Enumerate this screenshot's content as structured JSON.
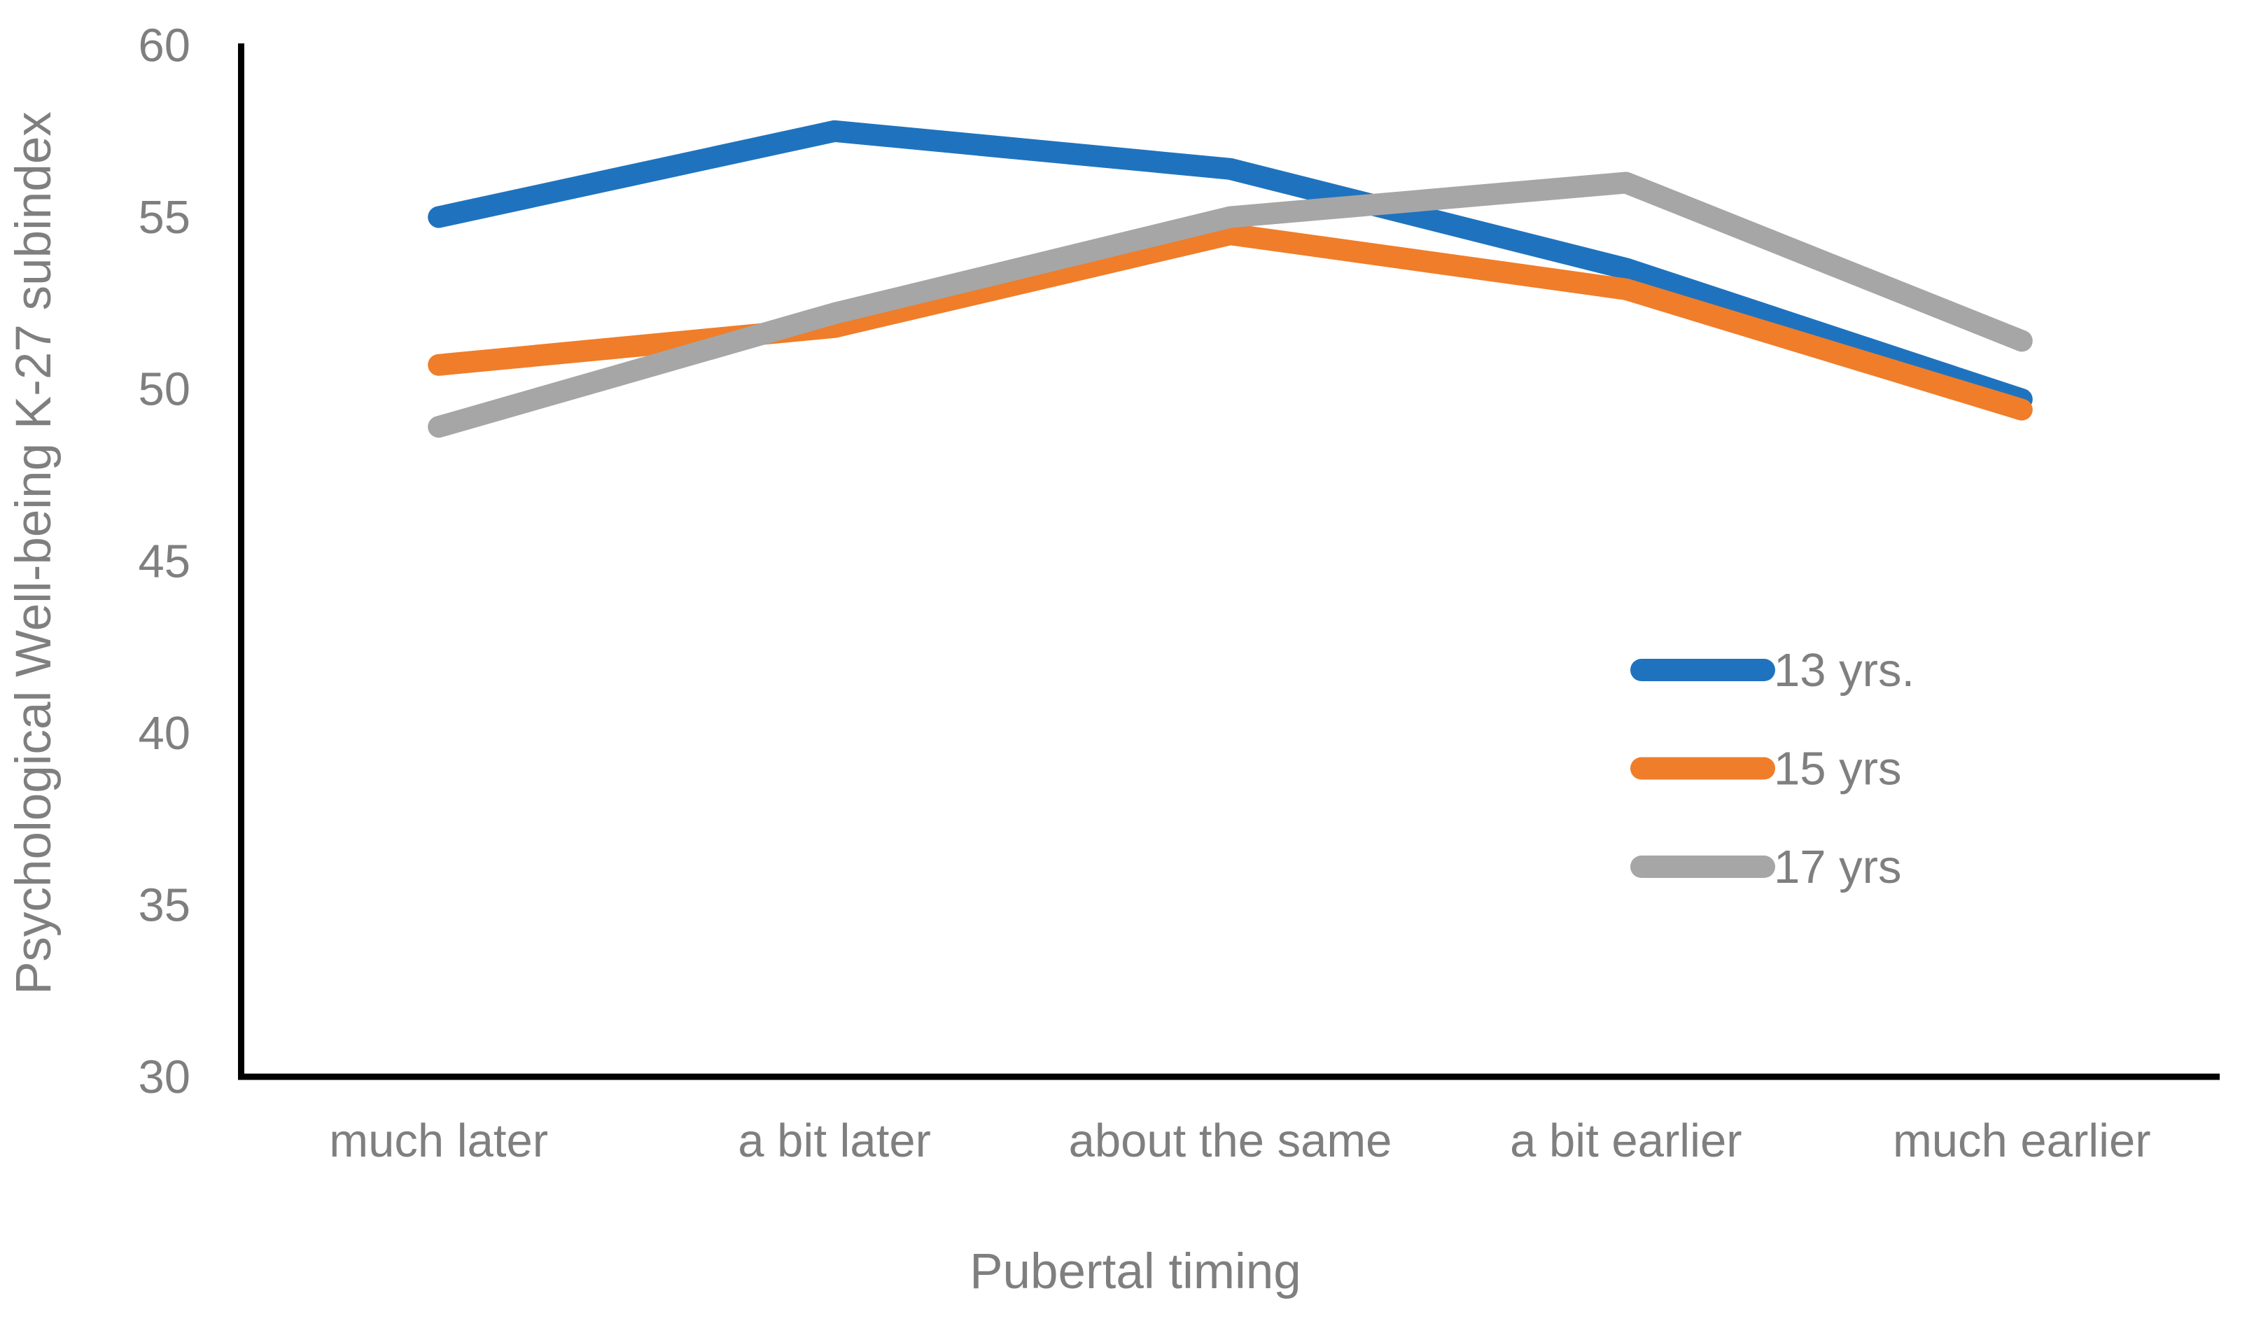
{
  "chart_data": {
    "type": "line",
    "title": "",
    "xlabel": "Pubertal timing",
    "ylabel": "Psychological Well-being K-27 subindex",
    "categories": [
      "much later",
      "a bit later",
      "about the same",
      "a bit earlier",
      "much earlier"
    ],
    "series": [
      {
        "name": "13 yrs.",
        "color": "#1F73BE",
        "values": [
          55.0,
          57.5,
          56.4,
          53.5,
          49.7
        ]
      },
      {
        "name": "15 yrs",
        "color": "#F07D29",
        "values": [
          50.7,
          51.8,
          54.5,
          52.9,
          49.4
        ]
      },
      {
        "name": "17 yrs",
        "color": "#A6A6A6",
        "values": [
          48.9,
          52.2,
          55.0,
          56.0,
          51.4
        ]
      }
    ],
    "ylim": [
      30,
      60
    ],
    "yticks": [
      30,
      35,
      40,
      45,
      50,
      55,
      60
    ],
    "grid": false,
    "legend_position": "right-middle"
  },
  "colors": {
    "axis_line": "#000000",
    "label_text": "#7F7F7F",
    "background": "#FFFFFF"
  }
}
